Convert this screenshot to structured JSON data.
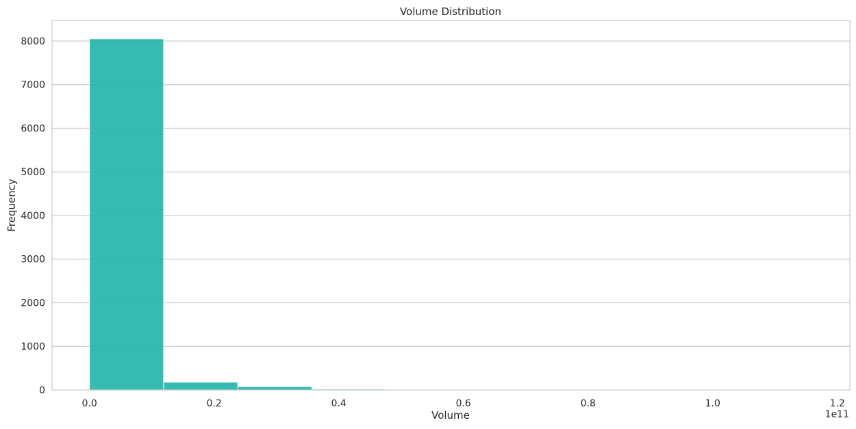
{
  "chart_data": {
    "type": "bar",
    "title": "Volume Distribution",
    "xlabel": "Volume",
    "ylabel": "Frequency",
    "x_offset_label": "1e11",
    "xlim": [
      -0.06,
      1.22
    ],
    "ylim": [
      0,
      8470
    ],
    "xticks": [
      0.0,
      0.2,
      0.4,
      0.6,
      0.8,
      1.0,
      1.2
    ],
    "xtick_labels": [
      "0.0",
      "0.2",
      "0.4",
      "0.6",
      "0.8",
      "1.0",
      "1.2"
    ],
    "yticks": [
      0,
      1000,
      2000,
      3000,
      4000,
      5000,
      6000,
      7000,
      8000
    ],
    "ytick_labels": [
      "0",
      "1000",
      "2000",
      "3000",
      "4000",
      "5000",
      "6000",
      "7000",
      "8000"
    ],
    "grid": "horizontal",
    "bar_color": "#20b2aa",
    "bins": [
      {
        "x0": 0.0,
        "x1": 0.119,
        "count": 8050
      },
      {
        "x0": 0.119,
        "x1": 0.238,
        "count": 180
      },
      {
        "x0": 0.238,
        "x1": 0.357,
        "count": 80
      },
      {
        "x0": 0.357,
        "x1": 0.476,
        "count": 20
      },
      {
        "x0": 0.476,
        "x1": 0.595,
        "count": 8
      },
      {
        "x0": 0.595,
        "x1": 0.714,
        "count": 4
      },
      {
        "x0": 0.714,
        "x1": 0.833,
        "count": 2
      },
      {
        "x0": 0.833,
        "x1": 0.952,
        "count": 1
      },
      {
        "x0": 0.952,
        "x1": 1.071,
        "count": 1
      },
      {
        "x0": 1.071,
        "x1": 1.19,
        "count": 1
      }
    ]
  }
}
